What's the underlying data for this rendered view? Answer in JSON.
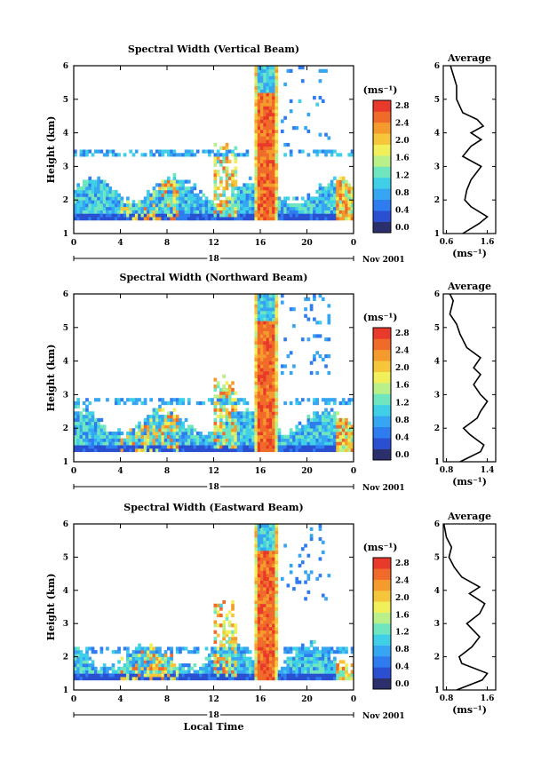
{
  "colorbar": {
    "unit": "(ms⁻¹)",
    "ticks": [
      "2.8",
      "2.4",
      "2.0",
      "1.6",
      "1.2",
      "0.8",
      "0.4",
      "0.0"
    ],
    "colors": [
      "#2b2f6b",
      "#2a4fd0",
      "#2f7cf0",
      "#36a6f2",
      "#3fd0e8",
      "#6fe6c0",
      "#b9f08a",
      "#f2f05a",
      "#f5c63a",
      "#f59b2e",
      "#f06a2a",
      "#e8392a"
    ]
  },
  "date_label": "Nov 2001",
  "x_axis": {
    "ticks": [
      "0",
      "4",
      "8",
      "12",
      "16",
      "20",
      "0"
    ],
    "day_label": "18",
    "xlabel": "Local Time"
  },
  "y_axis": {
    "ylabel": "Height (km)",
    "ticks": [
      "1",
      "2",
      "3",
      "4",
      "5",
      "6"
    ]
  },
  "panels": [
    {
      "title": "Spectral Width (Vertical Beam)",
      "avg_title": "Average",
      "avg_xticks": [
        "0.6",
        "1.6"
      ],
      "avg_xlabel": "(ms⁻¹)"
    },
    {
      "title": "Spectral Width (Northward Beam)",
      "avg_title": "Average",
      "avg_xticks": [
        "0.8",
        "1.4"
      ],
      "avg_xlabel": "(ms⁻¹)"
    },
    {
      "title": "Spectral Width (Eastward Beam)",
      "avg_title": "Average",
      "avg_xticks": [
        "0.8",
        "1.6"
      ],
      "avg_xlabel": "(ms⁻¹)"
    }
  ],
  "chart_data": [
    {
      "type": "heatmap",
      "title": "Spectral Width (Vertical Beam)",
      "xlabel": "",
      "ylabel": "Height (km)",
      "xlim": [
        0,
        24
      ],
      "ylim": [
        1,
        6
      ],
      "units": "ms-1",
      "color_range": [
        0.0,
        2.8
      ],
      "features": [
        {
          "x": [
            0,
            24
          ],
          "y": [
            1.4,
            2.3
          ],
          "value": 0.8
        },
        {
          "x": [
            12,
            14
          ],
          "y": [
            1.5,
            3.5
          ],
          "value": 1.6
        },
        {
          "x": [
            15.6,
            17.6
          ],
          "y": [
            1.4,
            6.0
          ],
          "value": 2.8
        }
      ],
      "average": {
        "xlim": [
          0.6,
          1.6
        ],
        "height": [
          1.0,
          1.3,
          1.5,
          1.8,
          2.0,
          2.3,
          2.6,
          3.0,
          3.3,
          3.6,
          3.8,
          4.0,
          4.2,
          4.4,
          4.6,
          5.0,
          5.4,
          5.8,
          6.0
        ],
        "width": [
          1.0,
          1.4,
          1.6,
          1.2,
          1.05,
          1.1,
          1.2,
          1.45,
          1.0,
          1.2,
          1.45,
          1.2,
          1.5,
          1.35,
          1.0,
          0.85,
          0.85,
          0.75,
          0.7
        ]
      }
    },
    {
      "type": "heatmap",
      "title": "Spectral Width (Northward Beam)",
      "xlabel": "",
      "ylabel": "Height (km)",
      "xlim": [
        0,
        24
      ],
      "ylim": [
        1,
        6
      ],
      "units": "ms-1",
      "color_range": [
        0.0,
        2.8
      ],
      "features": [
        {
          "x": [
            0,
            24
          ],
          "y": [
            1.3,
            2.2
          ],
          "value": 0.8
        },
        {
          "x": [
            12,
            14
          ],
          "y": [
            1.4,
            3.3
          ],
          "value": 1.6
        },
        {
          "x": [
            15.6,
            17.6
          ],
          "y": [
            1.3,
            6.0
          ],
          "value": 2.8
        }
      ],
      "average": {
        "xlim": [
          0.8,
          1.4
        ],
        "height": [
          1.0,
          1.3,
          1.5,
          1.8,
          2.0,
          2.3,
          2.5,
          2.8,
          3.0,
          3.3,
          3.6,
          3.8,
          4.1,
          4.4,
          4.8,
          5.1,
          5.4,
          5.8,
          6.0
        ],
        "width": [
          1.0,
          1.3,
          1.35,
          1.15,
          1.05,
          1.25,
          1.3,
          1.4,
          1.3,
          1.2,
          1.3,
          1.2,
          1.3,
          1.1,
          1.0,
          0.95,
          0.85,
          0.9,
          0.85
        ]
      }
    },
    {
      "type": "heatmap",
      "title": "Spectral Width (Eastward Beam)",
      "xlabel": "Local Time",
      "ylabel": "Height (km)",
      "xlim": [
        0,
        24
      ],
      "ylim": [
        1,
        6
      ],
      "units": "ms-1",
      "color_range": [
        0.0,
        2.8
      ],
      "features": [
        {
          "x": [
            0,
            24
          ],
          "y": [
            1.3,
            2.0
          ],
          "value": 0.8
        },
        {
          "x": [
            12,
            14
          ],
          "y": [
            1.4,
            3.5
          ],
          "value": 1.6
        },
        {
          "x": [
            15.6,
            17.6
          ],
          "y": [
            1.3,
            6.0
          ],
          "value": 2.8
        }
      ],
      "average": {
        "xlim": [
          0.8,
          1.6
        ],
        "height": [
          1.0,
          1.3,
          1.5,
          1.8,
          2.0,
          2.3,
          2.6,
          3.0,
          3.3,
          3.6,
          3.9,
          4.1,
          4.4,
          4.7,
          5.0,
          5.3,
          5.6,
          6.0
        ],
        "width": [
          1.0,
          1.5,
          1.6,
          1.1,
          1.05,
          1.3,
          1.45,
          1.2,
          1.45,
          1.55,
          1.25,
          1.45,
          1.1,
          0.95,
          0.85,
          0.9,
          0.8,
          0.75
        ]
      }
    }
  ]
}
